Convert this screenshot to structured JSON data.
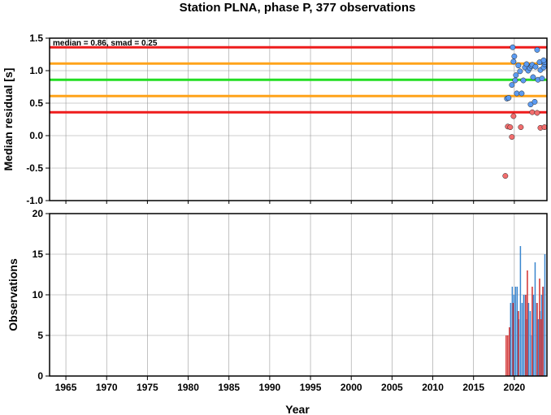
{
  "chart_data": [
    {
      "type": "scatter",
      "title": "Station PLNA, phase P, 377 observations",
      "ylabel": "Median residual [s]",
      "xlim": [
        1963,
        2024
      ],
      "ylim": [
        -1.0,
        1.5
      ],
      "yticks": [
        "-1.0",
        "-0.5",
        "0.0",
        "0.5",
        "1.0",
        "1.5"
      ],
      "grid": true,
      "annotation": "median = 0.86, smad = 0.25",
      "reference_lines": [
        {
          "value": 1.36,
          "color": "#ee1c1c"
        },
        {
          "value": 1.11,
          "color": "#ffa31a"
        },
        {
          "value": 0.86,
          "color": "#22dd22"
        },
        {
          "value": 0.61,
          "color": "#ffa31a"
        },
        {
          "value": 0.36,
          "color": "#ee1c1c"
        }
      ],
      "series": [
        {
          "color": "#5b9bf2",
          "points": [
            [
              2019.1,
              0.57
            ],
            [
              2019.3,
              0.58
            ],
            [
              2019.7,
              0.78
            ],
            [
              2019.8,
              1.36
            ],
            [
              2019.9,
              1.14
            ],
            [
              2020.0,
              1.22
            ],
            [
              2020.1,
              0.85
            ],
            [
              2020.2,
              0.93
            ],
            [
              2020.3,
              0.65
            ],
            [
              2020.5,
              1.08
            ],
            [
              2020.7,
              0.99
            ],
            [
              2020.9,
              0.65
            ],
            [
              2021.1,
              0.85
            ],
            [
              2021.3,
              1.05
            ],
            [
              2021.5,
              1.1
            ],
            [
              2021.7,
              1.0
            ],
            [
              2021.9,
              1.04
            ],
            [
              2022.0,
              0.48
            ],
            [
              2022.1,
              1.07
            ],
            [
              2022.2,
              1.09
            ],
            [
              2022.3,
              0.9
            ],
            [
              2022.5,
              0.52
            ],
            [
              2022.6,
              1.06
            ],
            [
              2022.8,
              1.32
            ],
            [
              2022.9,
              0.86
            ],
            [
              2023.1,
              1.13
            ],
            [
              2023.2,
              1.01
            ],
            [
              2023.4,
              0.88
            ],
            [
              2023.6,
              1.05
            ],
            [
              2023.8,
              1.1
            ],
            [
              2023.9,
              1.13
            ],
            [
              2023.6,
              1.16
            ]
          ]
        },
        {
          "color": "#f26d6d",
          "points": [
            [
              2018.9,
              -0.62
            ],
            [
              2019.2,
              0.14
            ],
            [
              2019.5,
              0.13
            ],
            [
              2019.7,
              -0.02
            ],
            [
              2019.9,
              0.3
            ],
            [
              2020.8,
              0.13
            ],
            [
              2022.2,
              0.36
            ],
            [
              2022.8,
              0.35
            ],
            [
              2023.2,
              0.12
            ],
            [
              2023.7,
              0.13
            ]
          ]
        }
      ]
    },
    {
      "type": "bar",
      "xlabel": "Year",
      "ylabel": "Observations",
      "xlim": [
        1963,
        2024
      ],
      "ylim": [
        0,
        20
      ],
      "yticks": [
        "0",
        "5",
        "10",
        "15",
        "20"
      ],
      "xticks": [
        "1965",
        "1970",
        "1975",
        "1980",
        "1985",
        "1990",
        "1995",
        "2000",
        "2005",
        "2010",
        "2015",
        "2020"
      ],
      "grid": true,
      "series": [
        {
          "color": "#3a86cf",
          "bars": [
            [
              2019.55,
              9
            ],
            [
              2019.75,
              11
            ],
            [
              2019.95,
              10
            ],
            [
              2020.15,
              11
            ],
            [
              2020.35,
              11
            ],
            [
              2020.55,
              7
            ],
            [
              2020.75,
              16
            ],
            [
              2020.95,
              9
            ],
            [
              2021.15,
              10
            ],
            [
              2021.35,
              10
            ],
            [
              2021.55,
              7
            ],
            [
              2021.75,
              9
            ],
            [
              2021.95,
              8
            ],
            [
              2022.15,
              5
            ],
            [
              2022.35,
              10
            ],
            [
              2022.55,
              14
            ],
            [
              2022.75,
              9
            ],
            [
              2022.95,
              7
            ],
            [
              2023.15,
              8
            ],
            [
              2023.35,
              10
            ],
            [
              2023.55,
              11
            ],
            [
              2023.75,
              15
            ]
          ]
        },
        {
          "color": "#d22f2f",
          "bars": [
            [
              2019.0,
              5
            ],
            [
              2019.2,
              5
            ],
            [
              2019.4,
              6
            ],
            [
              2019.85,
              9
            ],
            [
              2020.5,
              8
            ],
            [
              2021.4,
              10
            ],
            [
              2021.6,
              13
            ],
            [
              2022.2,
              11
            ],
            [
              2022.8,
              9
            ],
            [
              2023.1,
              12
            ],
            [
              2023.3,
              7
            ],
            [
              2023.5,
              11
            ]
          ]
        }
      ]
    }
  ]
}
